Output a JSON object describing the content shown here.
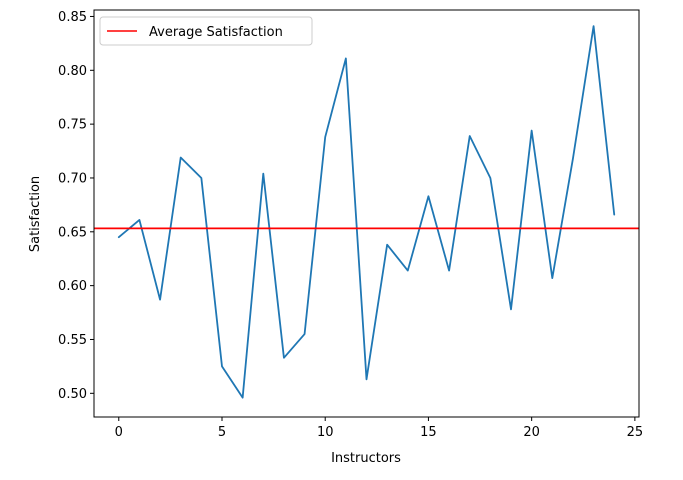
{
  "chart_data": {
    "type": "line",
    "xlabel": "Instructors",
    "ylabel": "Satisfaction",
    "xlim": [
      -1.2,
      25.2
    ],
    "ylim": [
      0.478,
      0.856
    ],
    "x_ticks": [
      0,
      5,
      10,
      15,
      20,
      25
    ],
    "y_ticks": [
      0.5,
      0.55,
      0.6,
      0.65,
      0.7,
      0.75,
      0.8,
      0.85
    ],
    "x_tick_labels": [
      "0",
      "5",
      "10",
      "15",
      "20",
      "25"
    ],
    "y_tick_labels": [
      "0.50",
      "0.55",
      "0.60",
      "0.65",
      "0.70",
      "0.75",
      "0.80",
      "0.85"
    ],
    "grid": false,
    "legend_position": "top-left",
    "series": [
      {
        "color": "#1f77b4",
        "x": [
          0,
          1,
          2,
          3,
          4,
          5,
          6,
          7,
          8,
          9,
          10,
          11,
          12,
          13,
          14,
          15,
          16,
          17,
          18,
          19,
          20,
          21,
          22,
          23,
          24
        ],
        "values": [
          0.645,
          0.661,
          0.587,
          0.719,
          0.7,
          0.525,
          0.496,
          0.704,
          0.533,
          0.555,
          0.738,
          0.811,
          0.513,
          0.638,
          0.614,
          0.683,
          0.614,
          0.739,
          0.7,
          0.578,
          0.744,
          0.607,
          0.718,
          0.841,
          0.666
        ]
      }
    ],
    "reference_lines": [
      {
        "name": "Average Satisfaction",
        "orientation": "horizontal",
        "value": 0.6532,
        "color": "#ff0000"
      }
    ]
  }
}
